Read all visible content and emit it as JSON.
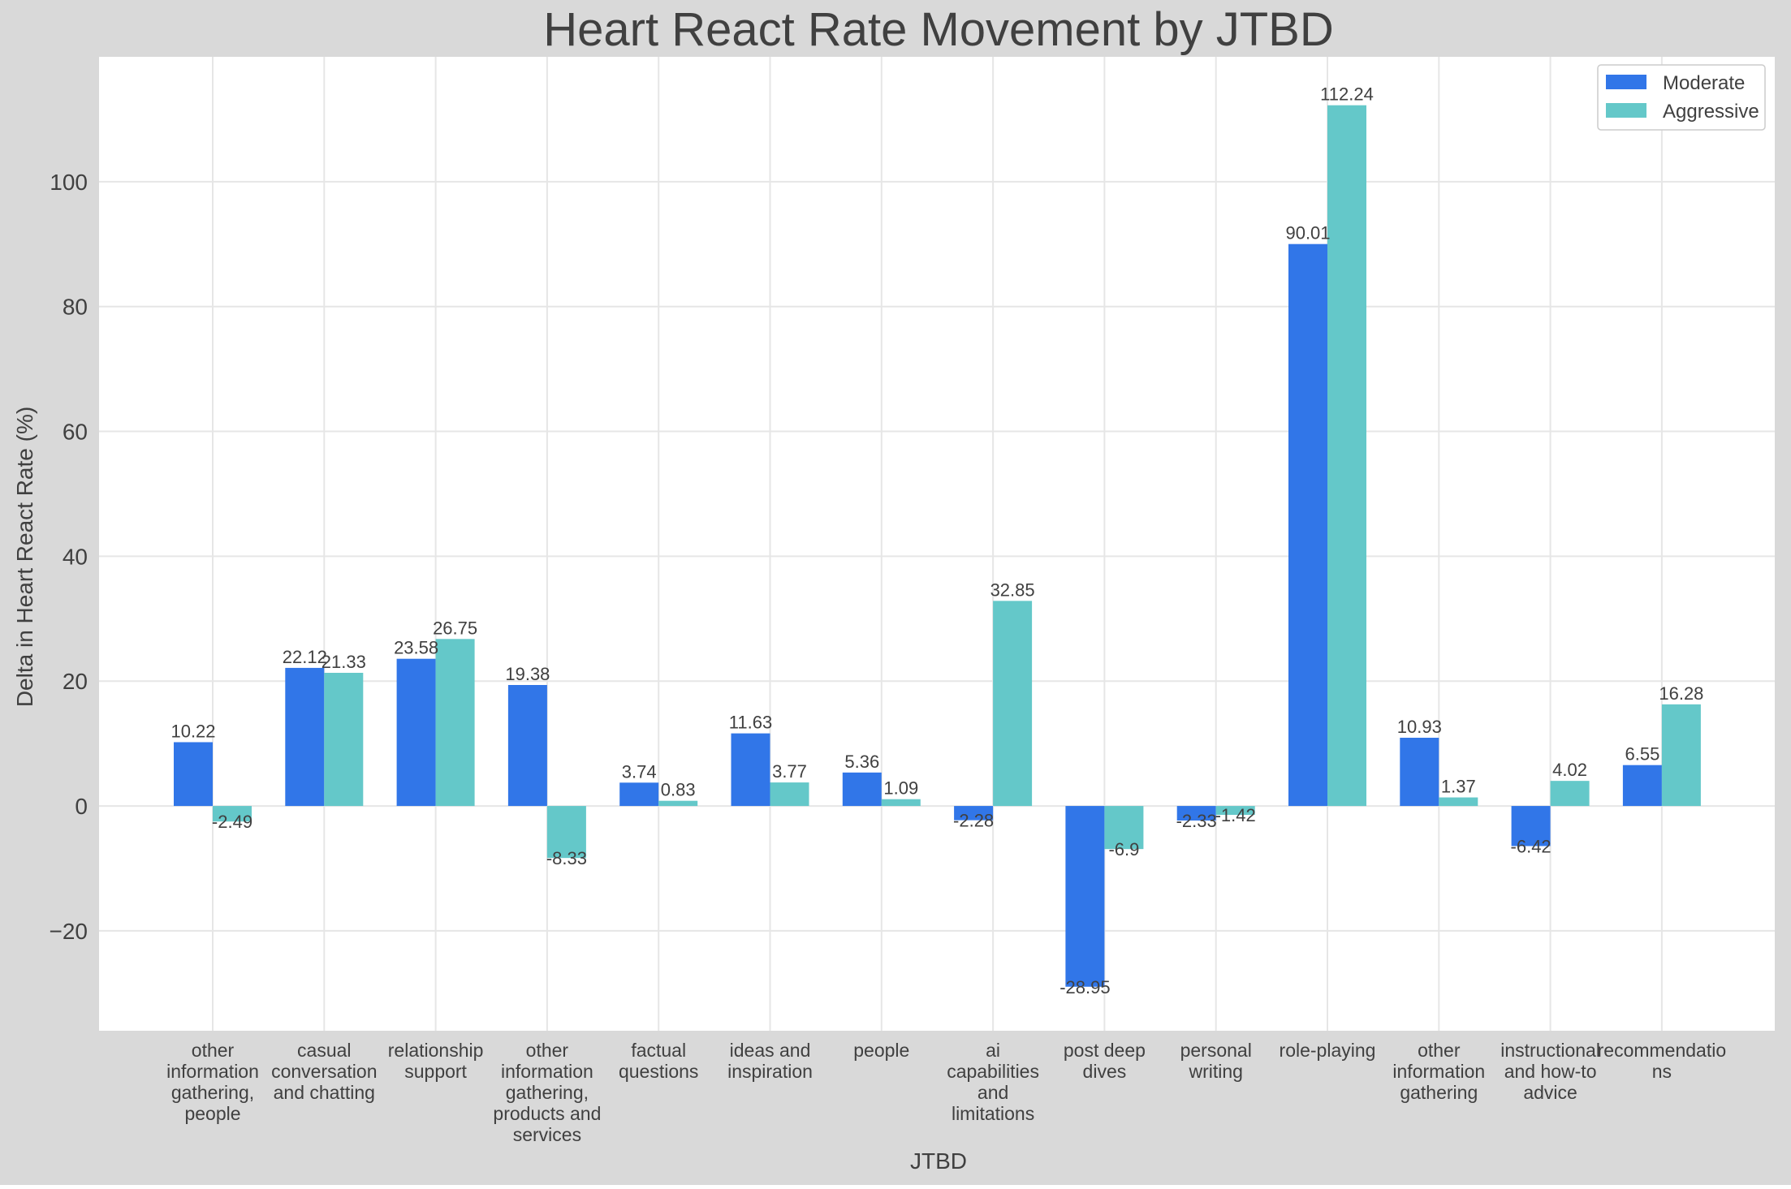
{
  "chart_data": {
    "type": "bar",
    "title": "Heart React Rate Movement by JTBD",
    "xlabel": "JTBD",
    "ylabel": "Delta in Heart React Rate (%)",
    "ylim": [
      -36,
      120
    ],
    "yticks": [
      -20,
      0,
      20,
      40,
      60,
      80,
      100
    ],
    "ytick_labels": [
      "−20",
      "0",
      "20",
      "40",
      "60",
      "80",
      "100"
    ],
    "grid": true,
    "legend_position": "top-right",
    "categories": [
      [
        "other",
        "information",
        "gathering,",
        "people"
      ],
      [
        "casual",
        "conversation",
        "and chatting"
      ],
      [
        "relationship",
        "support"
      ],
      [
        "other",
        "information",
        "gathering,",
        "products and",
        "services"
      ],
      [
        "factual",
        "questions"
      ],
      [
        "ideas and",
        "inspiration"
      ],
      [
        "people"
      ],
      [
        "ai",
        "capabilities",
        "and",
        "limitations"
      ],
      [
        "post deep",
        "dives"
      ],
      [
        "personal",
        "writing"
      ],
      [
        "role-playing"
      ],
      [
        "other",
        "information",
        "gathering"
      ],
      [
        "instructional",
        "and how-to",
        "advice"
      ],
      [
        "recommendatio",
        "ns"
      ]
    ],
    "series": [
      {
        "name": "Moderate",
        "color": "#3176e8",
        "values": [
          10.22,
          22.12,
          23.58,
          19.38,
          3.74,
          11.63,
          5.36,
          -2.28,
          -28.95,
          -2.33,
          90.01,
          10.93,
          -6.42,
          6.55
        ],
        "labels": [
          "10.22",
          "22.12",
          "23.58",
          "19.38",
          "3.74",
          "11.63",
          "5.36",
          "-2.28",
          "-28.95",
          "-2.33",
          "90.01",
          "10.93",
          "-6.42",
          "6.55"
        ]
      },
      {
        "name": "Aggressive",
        "color": "#64c8c9",
        "values": [
          -2.49,
          21.33,
          26.75,
          -8.33,
          0.83,
          3.77,
          1.09,
          32.85,
          -6.9,
          -1.42,
          112.24,
          1.37,
          4.02,
          16.28
        ],
        "labels": [
          "-2.49",
          "21.33",
          "26.75",
          "-8.33",
          "0.83",
          "3.77",
          "1.09",
          "32.85",
          "-6.9",
          "-1.42",
          "112.24",
          "1.37",
          "4.02",
          "16.28"
        ]
      }
    ],
    "colors": {
      "background": "#d9d9d9",
      "plot_background": "#ffffff",
      "grid": "#e6e6e6",
      "text": "#404040"
    }
  }
}
